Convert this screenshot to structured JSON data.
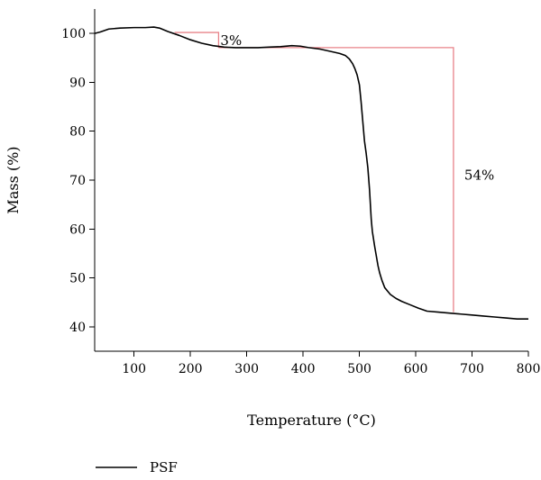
{
  "chart_data": {
    "type": "line",
    "title": "",
    "xlabel": "Temperature (°C)",
    "ylabel": "Mass (%)",
    "xlim": [
      30,
      800
    ],
    "ylim": [
      35,
      105
    ],
    "xticks": [
      100,
      200,
      300,
      400,
      500,
      600,
      700,
      800
    ],
    "yticks": [
      40,
      50,
      60,
      70,
      80,
      90,
      100
    ],
    "grid": false,
    "legend_position": "bottom-left",
    "series": [
      {
        "name": "PSF",
        "color": "#000000",
        "x": [
          30,
          40,
          55,
          75,
          100,
          120,
          135,
          145,
          160,
          180,
          200,
          220,
          240,
          260,
          280,
          300,
          320,
          340,
          360,
          380,
          395,
          410,
          430,
          450,
          465,
          475,
          482,
          488,
          492,
          496,
          500,
          503,
          506,
          509,
          512,
          515,
          518,
          521,
          523,
          525,
          527,
          530,
          533,
          536,
          540,
          545,
          550,
          555,
          565,
          575,
          590,
          605,
          620,
          640,
          660,
          680,
          700,
          720,
          740,
          760,
          780,
          800
        ],
        "y": [
          100.0,
          100.3,
          100.9,
          101.1,
          101.2,
          101.2,
          101.3,
          101.1,
          100.4,
          99.6,
          98.7,
          98.0,
          97.5,
          97.2,
          97.1,
          97.1,
          97.1,
          97.2,
          97.3,
          97.5,
          97.4,
          97.1,
          96.8,
          96.3,
          95.9,
          95.5,
          94.8,
          93.8,
          92.8,
          91.5,
          89.5,
          86.0,
          82.0,
          78.0,
          75.5,
          72.5,
          68.0,
          62.0,
          59.5,
          58.0,
          56.5,
          54.5,
          52.5,
          51.0,
          49.5,
          48.0,
          47.3,
          46.6,
          45.8,
          45.2,
          44.5,
          43.8,
          43.2,
          43.0,
          42.8,
          42.6,
          42.4,
          42.2,
          42.0,
          41.8,
          41.6,
          41.6
        ]
      }
    ],
    "annotations": [
      {
        "label": "3%",
        "color": "#e8838a",
        "bracket_x": [
          172,
          250
        ],
        "bracket_y": [
          100.2,
          97.1
        ]
      },
      {
        "label": "54%",
        "color": "#e8838a",
        "bracket_x": [
          250,
          667
        ],
        "bracket_y": [
          97.1,
          43.0
        ]
      }
    ]
  }
}
